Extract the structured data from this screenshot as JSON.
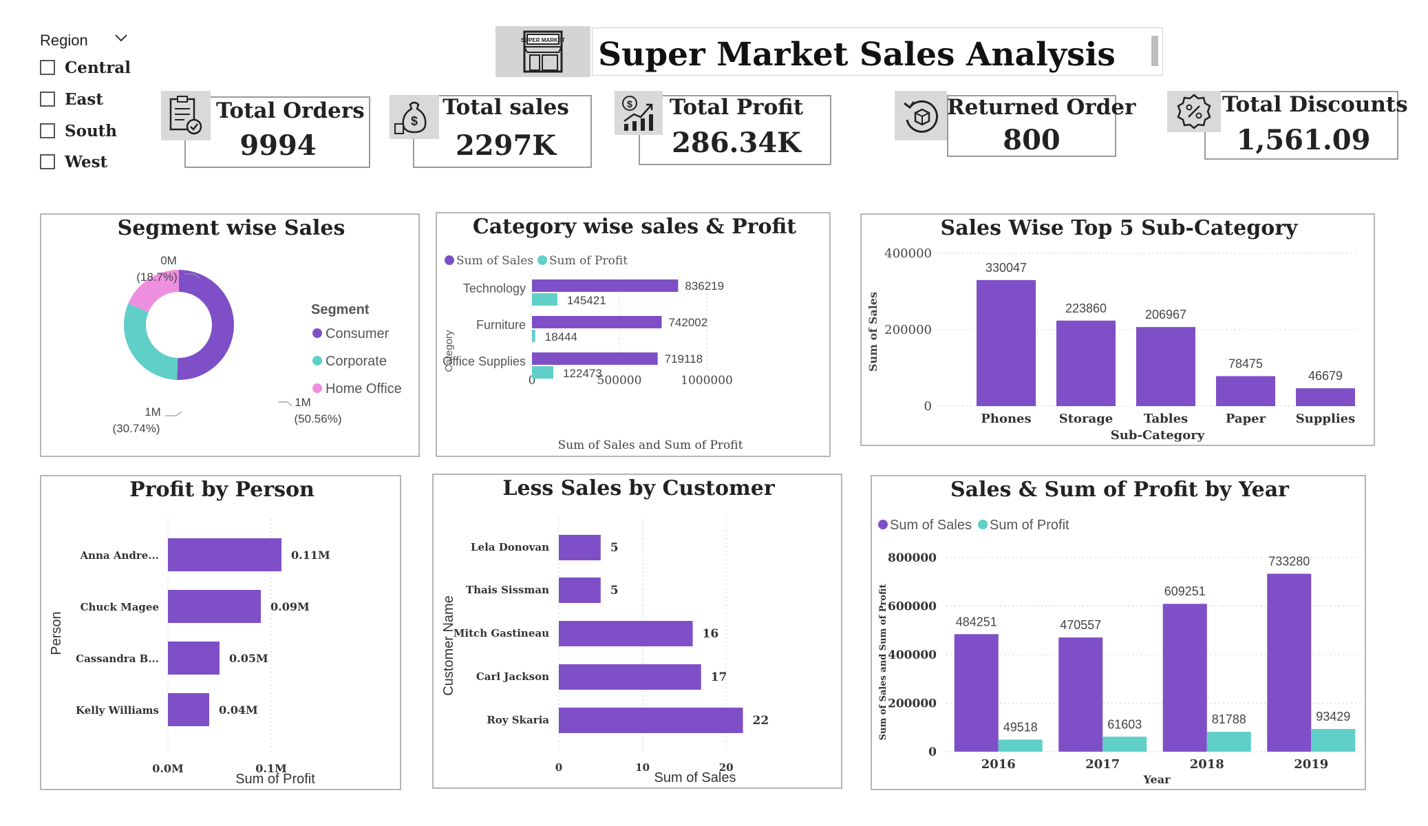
{
  "slicer": {
    "title": "Region",
    "items": [
      "Central",
      "East",
      "South",
      "West"
    ]
  },
  "header": {
    "title": "Super Market Sales Analysis",
    "logo_text": "SUPER MARKET"
  },
  "kpis": [
    {
      "label": "Total Orders",
      "value": "9994",
      "icon": "clipboard-check-icon"
    },
    {
      "label": "Total sales",
      "value": "2297K",
      "icon": "money-bag-icon"
    },
    {
      "label": "Total Profit",
      "value": "286.34K",
      "icon": "profit-growth-icon"
    },
    {
      "label": "Returned Order",
      "value": "800",
      "icon": "return-box-icon"
    },
    {
      "label": "Total Discounts",
      "value": "1,561.09",
      "icon": "discount-badge-icon"
    }
  ],
  "colors": {
    "purple": "#7e4fc6",
    "teal": "#5fcfc8",
    "pink": "#ee8fe0"
  },
  "chart_data": [
    {
      "id": "segment",
      "type": "pie",
      "title": "Segment wise Sales",
      "legend_title": "Segment",
      "slices": [
        {
          "name": "Consumer",
          "percent": 50.56,
          "label": "1M",
          "pct_label": "(50.56%)"
        },
        {
          "name": "Corporate",
          "percent": 30.74,
          "label": "1M",
          "pct_label": "(30.74%)"
        },
        {
          "name": "Home Office",
          "percent": 18.7,
          "label": "0M",
          "pct_label": "(18.7%)"
        }
      ]
    },
    {
      "id": "category",
      "type": "bar",
      "title": "Category wise sales & Profit",
      "categories": [
        "Technology",
        "Furniture",
        "Office Supplies"
      ],
      "series": [
        {
          "name": "Sum of Sales",
          "values": [
            836219,
            742002,
            719118
          ]
        },
        {
          "name": "Sum of Profit",
          "values": [
            145421,
            18444,
            122473
          ]
        }
      ],
      "xlabel": "Sum of Sales and Sum of Profit",
      "ylabel": "Category",
      "xlim": [
        0,
        1000000
      ],
      "ticks": [
        0,
        500000,
        1000000
      ],
      "tick_labels": [
        "0",
        "500000",
        "1000000"
      ]
    },
    {
      "id": "subcat",
      "type": "bar",
      "title": "Sales Wise Top 5 Sub-Category",
      "categories": [
        "Phones",
        "Storage",
        "Tables",
        "Paper",
        "Supplies"
      ],
      "values": [
        330047,
        223860,
        206967,
        78475,
        46679
      ],
      "xlabel": "Sub-Category",
      "ylabel": "Sum of Sales",
      "ylim": [
        0,
        400000
      ],
      "ticks": [
        0,
        200000,
        400000
      ],
      "tick_labels": [
        "0",
        "200000",
        "400000"
      ]
    },
    {
      "id": "person",
      "type": "bar",
      "title": "Profit by Person",
      "categories": [
        "Anna Andre...",
        "Chuck Magee",
        "Cassandra B...",
        "Kelly Williams"
      ],
      "values": [
        0.11,
        0.09,
        0.05,
        0.04
      ],
      "value_labels": [
        "0.11M",
        "0.09M",
        "0.05M",
        "0.04M"
      ],
      "xlabel": "Sum of Profit",
      "ylabel": "Person",
      "xlim": [
        0,
        0.15
      ],
      "ticks": [
        0,
        0.1
      ],
      "tick_labels": [
        "0.0M",
        "0.1M"
      ]
    },
    {
      "id": "customer",
      "type": "bar",
      "title": "Less Sales by Customer",
      "categories": [
        "Lela Donovan",
        "Thais Sissman",
        "Mitch Gastineau",
        "Carl Jackson",
        "Roy Skaria"
      ],
      "values": [
        5,
        5,
        16,
        17,
        22
      ],
      "xlabel": "Sum of Sales",
      "ylabel": "Customer Name",
      "xlim": [
        0,
        25
      ],
      "ticks": [
        0,
        10,
        20
      ],
      "tick_labels": [
        "0",
        "10",
        "20"
      ]
    },
    {
      "id": "year",
      "type": "bar",
      "title": "Sales & Sum of Profit by Year",
      "categories": [
        "2016",
        "2017",
        "2018",
        "2019"
      ],
      "series": [
        {
          "name": "Sum of Sales",
          "values": [
            484251,
            470557,
            609251,
            733280
          ]
        },
        {
          "name": "Sum of Profit",
          "values": [
            49518,
            61603,
            81788,
            93429
          ]
        }
      ],
      "xlabel": "Year",
      "ylabel": "Sum of Sales and Sum of Profit",
      "ylim": [
        0,
        800000
      ],
      "ticks": [
        0,
        200000,
        400000,
        600000,
        800000
      ],
      "tick_labels": [
        "0",
        "200000",
        "400000",
        "600000",
        "800000"
      ]
    }
  ]
}
